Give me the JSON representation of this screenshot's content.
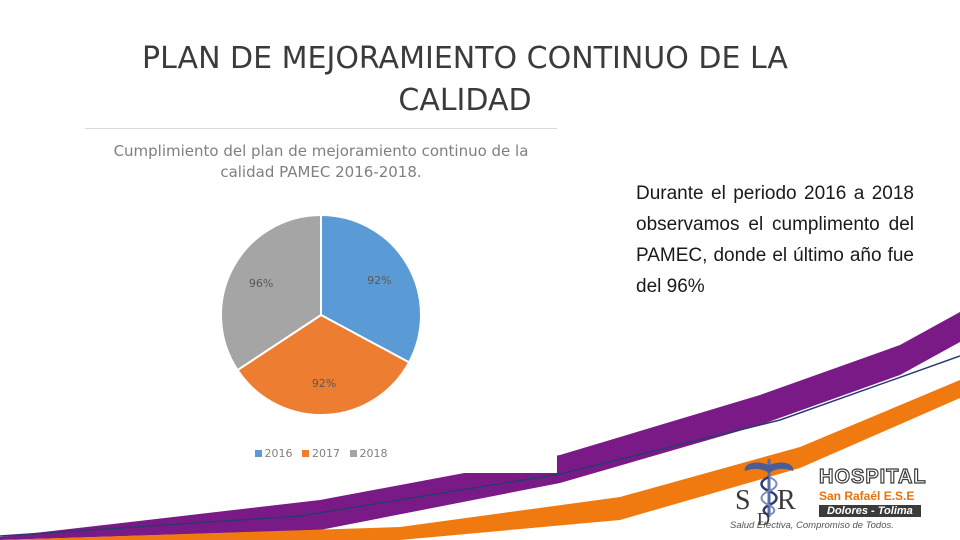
{
  "slide": {
    "title": "PLAN DE MEJORAMIENTO CONTINUO DE LA CALIDAD",
    "body_text": "Durante el periodo 2016 a 2018 observamos el cumplimento del PAMEC, donde el último año fue del 96%"
  },
  "colors": {
    "purple_band": "#7a1a86",
    "orange_band": "#f07a10",
    "navy_line": "#2b3a6e"
  },
  "logo": {
    "mark_icon": "hospital-caduceus-logo-icon",
    "name": "HOSPITAL",
    "line2": "San Rafaél E.S.E",
    "line3": "Dolores - Tolima",
    "slogan": "Salud Efectiva, Compromiso de Todos."
  },
  "chart_data": {
    "type": "pie",
    "title": "Cumplimiento del plan de mejoramiento continuo de la calidad PAMEC 2016-2018.",
    "categories": [
      "2016",
      "2017",
      "2018"
    ],
    "values": [
      92,
      92,
      96
    ],
    "labels": [
      "92%",
      "92%",
      "96%"
    ],
    "colors": [
      "#5b9bd5",
      "#ed7d31",
      "#a5a5a5"
    ],
    "legend": "bottom"
  }
}
